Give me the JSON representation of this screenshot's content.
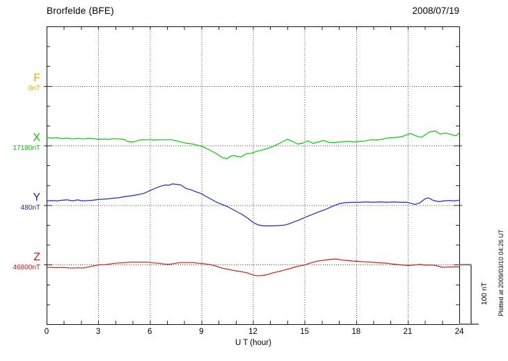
{
  "header": {
    "title": "Brorfelde (BFE)",
    "date": "2008/07/19"
  },
  "x_axis": {
    "label": "U T (hour)",
    "tick_labels": [
      "0",
      "3",
      "6",
      "9",
      "12",
      "15",
      "18",
      "21",
      "24"
    ],
    "min_hour": 0,
    "max_hour": 24,
    "minor_step_hours": 1,
    "major_step_hours": 3
  },
  "scale_bar": {
    "label": "100 nT",
    "nT": 100
  },
  "footer_note": "Plotted at 2009/03/10 04:26 UT",
  "channels": [
    {
      "id": "F",
      "label": "F",
      "baseline_label": "0nT",
      "color": "#FFA500"
    },
    {
      "id": "X",
      "label": "X",
      "baseline_label": "17180nT",
      "color": "#00CC00"
    },
    {
      "id": "Y",
      "label": "Y",
      "baseline_label": "480nT",
      "color": "#2222CC"
    },
    {
      "id": "Z",
      "label": "Z",
      "baseline_label": "46800nT",
      "color": "#DD1111"
    }
  ],
  "chart_data": {
    "type": "line",
    "title": "Brorfelde (BFE)",
    "xlabel": "U T (hour)",
    "x_range": [
      0,
      24
    ],
    "grid": "dotted, vertical every 3 h, horizontal at each channel baseline",
    "scale_nT_per_division": 100,
    "note": "values are deviations in nT from each channel baseline",
    "series": [
      {
        "name": "F",
        "baseline_nT": 0,
        "color": "#FFA500",
        "points": []
      },
      {
        "name": "X",
        "baseline_nT": 17180,
        "color": "#00CC00",
        "points": [
          [
            0,
            13.6
          ],
          [
            0.3,
            12.5
          ],
          [
            0.6,
            13
          ],
          [
            0.9,
            11.5
          ],
          [
            1.2,
            12.5
          ],
          [
            1.5,
            11
          ],
          [
            1.8,
            12
          ],
          [
            2.1,
            11
          ],
          [
            2.4,
            12
          ],
          [
            2.7,
            11.5
          ],
          [
            3,
            10.5
          ],
          [
            3.3,
            11
          ],
          [
            3.6,
            10.5
          ],
          [
            3.9,
            11.5
          ],
          [
            4.2,
            11
          ],
          [
            4.5,
            10.5
          ],
          [
            4.7,
            7
          ],
          [
            4.9,
            5.8
          ],
          [
            5.1,
            6.4
          ],
          [
            5.4,
            9
          ],
          [
            5.7,
            9.7
          ],
          [
            6,
            9.7
          ],
          [
            6.3,
            9
          ],
          [
            6.6,
            9.7
          ],
          [
            6.9,
            9.7
          ],
          [
            7.2,
            9.7
          ],
          [
            7.5,
            8.2
          ],
          [
            7.8,
            5.8
          ],
          [
            8.1,
            4
          ],
          [
            8.4,
            2.9
          ],
          [
            8.7,
            1
          ],
          [
            9,
            -1.2
          ],
          [
            9.3,
            -5
          ],
          [
            9.6,
            -9.3
          ],
          [
            9.9,
            -14
          ],
          [
            10.2,
            -20
          ],
          [
            10.5,
            -22.5
          ],
          [
            10.7,
            -18
          ],
          [
            10.9,
            -16.7
          ],
          [
            11.1,
            -18.5
          ],
          [
            11.3,
            -19.5
          ],
          [
            11.6,
            -14
          ],
          [
            11.9,
            -13
          ],
          [
            12.2,
            -10
          ],
          [
            12.5,
            -7.8
          ],
          [
            12.8,
            -5.5
          ],
          [
            13.1,
            -2.5
          ],
          [
            13.4,
            1.5
          ],
          [
            13.7,
            6
          ],
          [
            14,
            10.5
          ],
          [
            14.3,
            7
          ],
          [
            14.6,
            2.5
          ],
          [
            14.9,
            4.1
          ],
          [
            15.2,
            7.8
          ],
          [
            15.5,
            3.5
          ],
          [
            15.8,
            6
          ],
          [
            16.1,
            8.5
          ],
          [
            16.4,
            5.5
          ],
          [
            16.7,
            4.7
          ],
          [
            17,
            6
          ],
          [
            17.3,
            6.5
          ],
          [
            17.6,
            7
          ],
          [
            17.9,
            6
          ],
          [
            18.2,
            7
          ],
          [
            18.5,
            7.5
          ],
          [
            18.9,
            9.7
          ],
          [
            19.2,
            9
          ],
          [
            19.5,
            10.5
          ],
          [
            19.8,
            12.5
          ],
          [
            20.1,
            13
          ],
          [
            20.4,
            13.6
          ],
          [
            20.7,
            15.2
          ],
          [
            21,
            19
          ],
          [
            21.2,
            20
          ],
          [
            21.5,
            16
          ],
          [
            21.8,
            13.6
          ],
          [
            22,
            17.5
          ],
          [
            22.3,
            23
          ],
          [
            22.6,
            24.5
          ],
          [
            22.9,
            19
          ],
          [
            23.2,
            21
          ],
          [
            23.5,
            18.6
          ],
          [
            23.8,
            16.3
          ],
          [
            24,
            21
          ]
        ]
      },
      {
        "name": "Y",
        "baseline_nT": 480,
        "color": "#2222CC",
        "points": [
          [
            0,
            7
          ],
          [
            0.3,
            7.6
          ],
          [
            0.6,
            7
          ],
          [
            0.9,
            8.2
          ],
          [
            1.2,
            8.7
          ],
          [
            1.5,
            7
          ],
          [
            1.8,
            8.7
          ],
          [
            2.1,
            7
          ],
          [
            2.4,
            7.6
          ],
          [
            2.7,
            8.2
          ],
          [
            3,
            9.3
          ],
          [
            3.3,
            9.9
          ],
          [
            3.6,
            10.5
          ],
          [
            3.9,
            11.7
          ],
          [
            4.2,
            12.2
          ],
          [
            4.5,
            14
          ],
          [
            4.8,
            15.2
          ],
          [
            5.1,
            16.3
          ],
          [
            5.4,
            18.1
          ],
          [
            5.7,
            20
          ],
          [
            6,
            24.5
          ],
          [
            6.3,
            28
          ],
          [
            6.6,
            31.5
          ],
          [
            6.9,
            33.8
          ],
          [
            7.1,
            33.2
          ],
          [
            7.3,
            35.6
          ],
          [
            7.5,
            35
          ],
          [
            7.8,
            33.8
          ],
          [
            8.1,
            28
          ],
          [
            8.4,
            25.6
          ],
          [
            8.7,
            22.2
          ],
          [
            9,
            19.2
          ],
          [
            9.3,
            14
          ],
          [
            9.6,
            9.3
          ],
          [
            9.9,
            4.7
          ],
          [
            10.2,
            1.2
          ],
          [
            10.5,
            -2.3
          ],
          [
            10.8,
            -7
          ],
          [
            11.1,
            -11.7
          ],
          [
            11.4,
            -16.3
          ],
          [
            11.7,
            -22.2
          ],
          [
            12,
            -29.1
          ],
          [
            12.3,
            -33.2
          ],
          [
            12.6,
            -35
          ],
          [
            12.9,
            -35
          ],
          [
            13.2,
            -35
          ],
          [
            13.5,
            -34.4
          ],
          [
            13.8,
            -33.8
          ],
          [
            14.1,
            -31.5
          ],
          [
            14.4,
            -28
          ],
          [
            14.7,
            -25
          ],
          [
            15,
            -21
          ],
          [
            15.4,
            -16.3
          ],
          [
            15.8,
            -11.7
          ],
          [
            16.2,
            -7.6
          ],
          [
            16.6,
            -2.3
          ],
          [
            17,
            2.3
          ],
          [
            17.4,
            4.1
          ],
          [
            17.8,
            4.7
          ],
          [
            18.2,
            4.7
          ],
          [
            18.6,
            5.2
          ],
          [
            19,
            4.7
          ],
          [
            19.4,
            5.2
          ],
          [
            19.8,
            4.7
          ],
          [
            20.2,
            5.2
          ],
          [
            20.6,
            4.7
          ],
          [
            21,
            4.7
          ],
          [
            21.4,
            1.2
          ],
          [
            21.7,
            3.5
          ],
          [
            22,
            10.5
          ],
          [
            22.2,
            12.2
          ],
          [
            22.5,
            7.6
          ],
          [
            22.8,
            5.8
          ],
          [
            23.1,
            7
          ],
          [
            23.4,
            7.6
          ],
          [
            23.7,
            7
          ],
          [
            24,
            8.2
          ]
        ]
      },
      {
        "name": "Z",
        "baseline_nT": 46800,
        "color": "#DD1111",
        "points": [
          [
            0,
            -4.4
          ],
          [
            0.3,
            -4.7
          ],
          [
            0.6,
            -5.2
          ],
          [
            0.9,
            -4.7
          ],
          [
            1.2,
            -5.2
          ],
          [
            1.5,
            -5.8
          ],
          [
            1.8,
            -5.2
          ],
          [
            2.1,
            -5.8
          ],
          [
            2.4,
            -4.1
          ],
          [
            2.7,
            -2.3
          ],
          [
            3,
            -0.6
          ],
          [
            3.4,
            0
          ],
          [
            3.7,
            1.2
          ],
          [
            4,
            2.3
          ],
          [
            4.3,
            2.9
          ],
          [
            4.6,
            3.5
          ],
          [
            4.9,
            4.1
          ],
          [
            5.2,
            4.1
          ],
          [
            5.5,
            4.1
          ],
          [
            5.9,
            4.1
          ],
          [
            6.2,
            2.9
          ],
          [
            6.5,
            2.3
          ],
          [
            6.8,
            1.2
          ],
          [
            7.1,
            0.6
          ],
          [
            7.4,
            1.8
          ],
          [
            7.8,
            3.5
          ],
          [
            8.1,
            3.5
          ],
          [
            8.5,
            3.5
          ],
          [
            8.8,
            2.3
          ],
          [
            9.1,
            1.8
          ],
          [
            9.4,
            0.6
          ],
          [
            9.6,
            -0.6
          ],
          [
            9.9,
            -2.9
          ],
          [
            10.2,
            -5.8
          ],
          [
            10.5,
            -7.6
          ],
          [
            10.8,
            -9.3
          ],
          [
            11.1,
            -11
          ],
          [
            11.4,
            -12.2
          ],
          [
            11.7,
            -14
          ],
          [
            12,
            -17.5
          ],
          [
            12.3,
            -18.6
          ],
          [
            12.6,
            -18
          ],
          [
            12.9,
            -16.3
          ],
          [
            13.2,
            -13.4
          ],
          [
            13.5,
            -11.7
          ],
          [
            13.8,
            -9.3
          ],
          [
            14.1,
            -7
          ],
          [
            14.4,
            -4.4
          ],
          [
            14.7,
            -2.3
          ],
          [
            15,
            -0.6
          ],
          [
            15.3,
            2.3
          ],
          [
            15.7,
            5.6
          ],
          [
            16,
            7
          ],
          [
            16.4,
            8.4
          ],
          [
            16.8,
            9.6
          ],
          [
            17.1,
            8.2
          ],
          [
            17.4,
            7.2
          ],
          [
            17.8,
            6
          ],
          [
            18.1,
            5.6
          ],
          [
            18.5,
            4.7
          ],
          [
            18.9,
            4.1
          ],
          [
            19.3,
            3.2
          ],
          [
            19.7,
            2.6
          ],
          [
            20.1,
            1.2
          ],
          [
            20.4,
            0.2
          ],
          [
            20.8,
            -0.9
          ],
          [
            21.1,
            -1.4
          ],
          [
            21.4,
            -0.6
          ],
          [
            21.7,
            0.3
          ],
          [
            22,
            -0.9
          ],
          [
            22.3,
            -0.6
          ],
          [
            22.6,
            -1.2
          ],
          [
            23,
            -4.4
          ],
          [
            23.3,
            -4.1
          ],
          [
            23.6,
            -3.8
          ],
          [
            24,
            -3.7
          ]
        ]
      }
    ]
  }
}
